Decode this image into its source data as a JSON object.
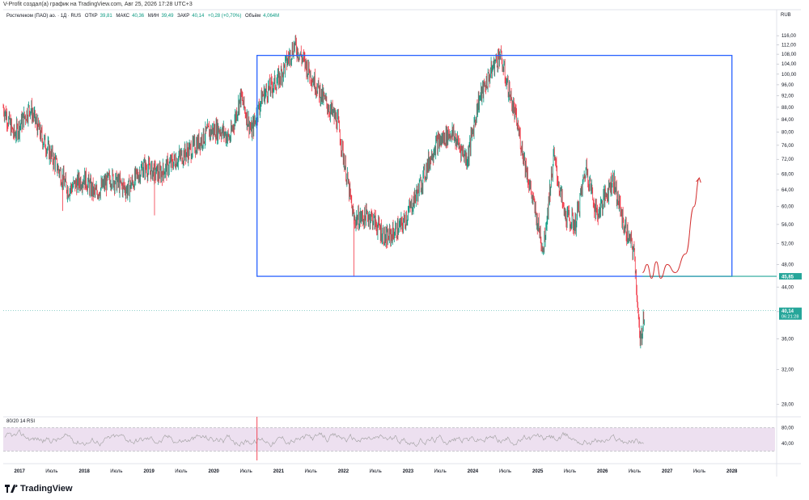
{
  "header": {
    "author_line": "V-Profit создал(а) график на TradingView.com, Авг 25, 2026 17:28 UTC+3"
  },
  "legend": {
    "symbol": "Ростелеком (ПАО) ао. · 1Д · RUS",
    "open_label": "ОТКР",
    "open": "39,81",
    "high_label": "МАКС",
    "high": "40,36",
    "low_label": "МИН",
    "low": "39,49",
    "close_label": "ЗАКР",
    "close": "40,14",
    "change": "+0,28 (+0,70%)",
    "volume_label": "Объём",
    "volume": "4,064M"
  },
  "currency": "RUB",
  "footer": {
    "brand": "TradingView"
  },
  "colors": {
    "up": "#089981",
    "down": "#f23645",
    "box": "#2962ff",
    "level": "#26a69a",
    "forecast": "#d32f2f",
    "rsi_fill": "#ede0f0",
    "rsi_line": "#9e9e9e"
  },
  "chart_data": {
    "type": "candlestick",
    "y_scale": "log",
    "ylim": [
      27,
      122
    ],
    "x_range": [
      "2016-10-01",
      "2028-08-31"
    ],
    "y_ticks": [
      "116,00",
      "112,00",
      "108,00",
      "104,00",
      "100,00",
      "96,00",
      "92,00",
      "88,00",
      "84,00",
      "80,00",
      "76,00",
      "72,00",
      "68,00",
      "64,00",
      "60,00",
      "56,00",
      "52,00",
      "48,00",
      "44,00",
      "40,00",
      "36,00",
      "32,00",
      "28,00"
    ],
    "x_ticks": [
      {
        "date": "2017-01-01",
        "label": "2017"
      },
      {
        "date": "2017-07-01",
        "label": "Июль"
      },
      {
        "date": "2018-01-01",
        "label": "2018"
      },
      {
        "date": "2018-07-01",
        "label": "Июль"
      },
      {
        "date": "2019-01-01",
        "label": "2019"
      },
      {
        "date": "2019-07-01",
        "label": "Июль"
      },
      {
        "date": "2020-01-01",
        "label": "2020"
      },
      {
        "date": "2020-07-01",
        "label": "Июль"
      },
      {
        "date": "2021-01-01",
        "label": "2021"
      },
      {
        "date": "2021-07-01",
        "label": "Июль"
      },
      {
        "date": "2022-01-01",
        "label": "2022"
      },
      {
        "date": "2022-07-01",
        "label": "Июль"
      },
      {
        "date": "2023-01-01",
        "label": "2023"
      },
      {
        "date": "2023-07-01",
        "label": "Июль"
      },
      {
        "date": "2024-01-01",
        "label": "2024"
      },
      {
        "date": "2024-07-01",
        "label": "Июль"
      },
      {
        "date": "2025-01-01",
        "label": "2025"
      },
      {
        "date": "2025-07-01",
        "label": "Июль"
      },
      {
        "date": "2026-01-01",
        "label": "2026"
      },
      {
        "date": "2026-07-01",
        "label": "Июль"
      },
      {
        "date": "2027-01-01",
        "label": "2027"
      },
      {
        "date": "2027-07-01",
        "label": "Июль"
      },
      {
        "date": "2028-01-01",
        "label": "2028"
      }
    ],
    "price_path": [
      [
        "2016-10-01",
        88
      ],
      [
        "2016-12-01",
        79
      ],
      [
        "2017-03-01",
        88
      ],
      [
        "2017-05-01",
        79
      ],
      [
        "2017-08-01",
        70
      ],
      [
        "2017-10-01",
        64
      ],
      [
        "2018-01-01",
        67
      ],
      [
        "2018-03-01",
        63
      ],
      [
        "2018-06-01",
        67
      ],
      [
        "2018-09-01",
        64
      ],
      [
        "2018-12-01",
        70
      ],
      [
        "2019-03-01",
        68
      ],
      [
        "2019-06-01",
        72
      ],
      [
        "2019-09-01",
        75
      ],
      [
        "2019-12-01",
        80
      ],
      [
        "2020-02-01",
        81
      ],
      [
        "2020-04-01",
        78
      ],
      [
        "2020-06-01",
        92
      ],
      [
        "2020-08-01",
        80
      ],
      [
        "2020-10-01",
        92
      ],
      [
        "2021-01-01",
        98
      ],
      [
        "2021-04-01",
        112
      ],
      [
        "2021-06-01",
        104
      ],
      [
        "2021-09-01",
        92
      ],
      [
        "2021-12-01",
        83
      ],
      [
        "2022-03-01",
        57
      ],
      [
        "2022-06-01",
        58
      ],
      [
        "2022-09-01",
        53
      ],
      [
        "2022-12-01",
        56
      ],
      [
        "2023-03-01",
        64
      ],
      [
        "2023-06-01",
        76
      ],
      [
        "2023-09-01",
        80
      ],
      [
        "2023-12-01",
        72
      ],
      [
        "2024-02-01",
        90
      ],
      [
        "2024-05-01",
        104
      ],
      [
        "2024-06-01",
        108
      ],
      [
        "2024-09-01",
        84
      ],
      [
        "2024-12-01",
        62
      ],
      [
        "2025-02-01",
        51
      ],
      [
        "2025-04-01",
        73
      ],
      [
        "2025-06-01",
        58
      ],
      [
        "2025-08-01",
        56
      ],
      [
        "2025-10-01",
        70
      ],
      [
        "2025-12-01",
        58
      ],
      [
        "2026-03-01",
        67
      ],
      [
        "2026-05-01",
        56
      ],
      [
        "2026-07-01",
        50
      ],
      [
        "2026-08-01",
        35
      ],
      [
        "2026-08-25",
        40.14
      ]
    ],
    "annotations": {
      "box": {
        "x0": "2020-09-01",
        "x1": "2028-01-01",
        "y_top": 107.5,
        "y_bottom": 45.85
      },
      "level_line": {
        "from": "2026-08-15",
        "value": 45.85
      },
      "forecast_path": [
        [
          "2026-08-15",
          46.5
        ],
        [
          "2026-09-10",
          48
        ],
        [
          "2026-10-05",
          45.5
        ],
        [
          "2026-11-01",
          48.5
        ],
        [
          "2026-11-25",
          45.5
        ],
        [
          "2027-01-01",
          48
        ],
        [
          "2027-02-15",
          46.5
        ],
        [
          "2027-04-15",
          50
        ],
        [
          "2027-06-01",
          60
        ],
        [
          "2027-07-01",
          67
        ]
      ],
      "spike_lows": [
        {
          "date": "2017-09-01",
          "low": 59
        },
        {
          "date": "2019-02-01",
          "low": 58
        },
        {
          "date": "2022-03-01",
          "low": 45.9
        },
        {
          "date": "2022-09-01",
          "low": 51
        }
      ]
    },
    "price_labels": {
      "level": "45,85",
      "last": "40,14",
      "countdown": "06:21:28"
    },
    "rsi": {
      "label": "80/20 14 RSI",
      "ticks": [
        "80,00",
        "40,00"
      ],
      "upper": 80,
      "lower": 20
    }
  }
}
